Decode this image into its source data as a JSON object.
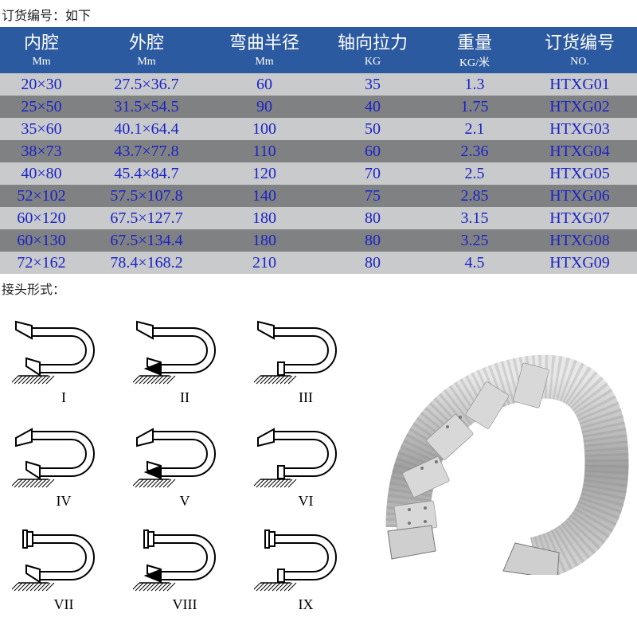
{
  "top_label": "订货编号：如下",
  "table": {
    "header_bg": "#2c5aa0",
    "header_text_color": "#ffffff",
    "cell_text_color": "#1a23c8",
    "row_odd_bg": "#c9cacb",
    "row_even_bg": "#808182",
    "columns_main": [
      "内腔",
      "外腔",
      "弯曲半径",
      "轴向拉力",
      "重量",
      "订货编号"
    ],
    "columns_sub": [
      "Mm",
      "Mm",
      "Mm",
      "KG",
      "KG/米",
      "NO."
    ],
    "col_widths_pct": [
      13,
      20,
      17,
      17,
      15,
      18
    ],
    "rows": [
      [
        "20×30",
        "27.5×36.7",
        "60",
        "35",
        "1.3",
        "HTXG01"
      ],
      [
        "25×50",
        "31.5×54.5",
        "90",
        "40",
        "1.75",
        "HTXG02"
      ],
      [
        "35×60",
        "40.1×64.4",
        "100",
        "50",
        "2.1",
        "HTXG03"
      ],
      [
        "38×73",
        "43.7×77.8",
        "110",
        "60",
        "2.36",
        "HTXG04"
      ],
      [
        "40×80",
        "45.4×84.7",
        "120",
        "70",
        "2.5",
        "HTXG05"
      ],
      [
        "52×102",
        "57.5×107.8",
        "140",
        "75",
        "2.85",
        "HTXG06"
      ],
      [
        "60×120",
        "67.5×127.7",
        "180",
        "80",
        "3.15",
        "HTXG07"
      ],
      [
        "60×130",
        "67.5×134.4",
        "180",
        "80",
        "3.25",
        "HTXG08"
      ],
      [
        "72×162",
        "78.4×168.2",
        "210",
        "80",
        "4.5",
        "HTXG09"
      ]
    ]
  },
  "sub_label": "接头形式：",
  "diagrams": {
    "stroke": "#000000",
    "stroke_width": 2,
    "labels": [
      "I",
      "II",
      "III",
      "IV",
      "V",
      "VI",
      "VII",
      "VIII",
      "IX"
    ],
    "types": [
      {
        "left": "plain",
        "right": "taper"
      },
      {
        "left": "arrow",
        "right": "taper"
      },
      {
        "left": "hatch",
        "right": "taper"
      },
      {
        "left": "plain",
        "right": "taper_down"
      },
      {
        "left": "arrow",
        "right": "taper_down"
      },
      {
        "left": "hatch",
        "right": "taper_down"
      },
      {
        "left": "plain",
        "right": "cap"
      },
      {
        "left": "arrow",
        "right": "cap"
      },
      {
        "left": "hatch",
        "right": "cap"
      }
    ]
  },
  "photo": {
    "body_color": "#b8b8b8",
    "plate_color": "#d8d8d8",
    "rivet_color": "#888888"
  }
}
